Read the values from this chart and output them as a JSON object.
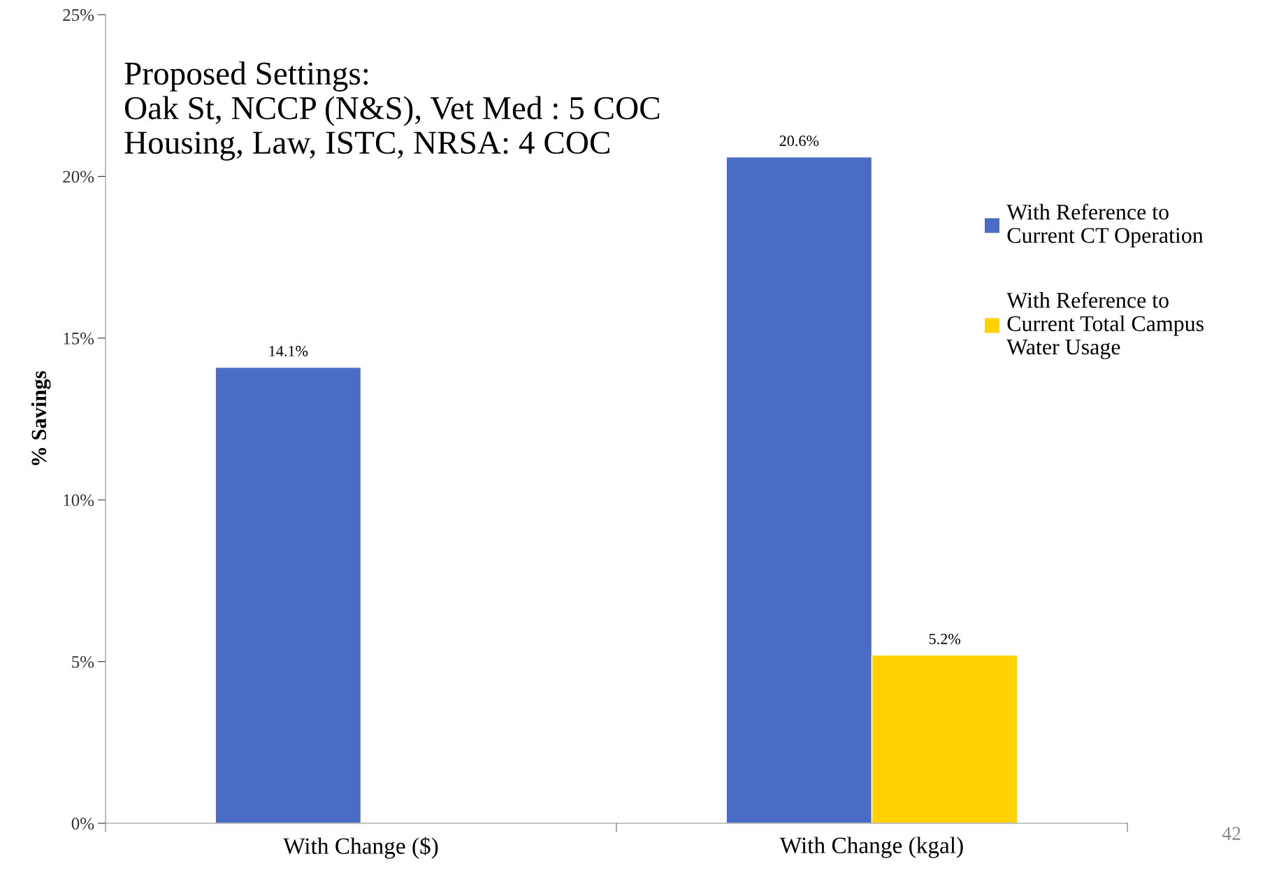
{
  "chart_data": {
    "type": "bar",
    "ylabel": "% Savings",
    "categories": [
      "With Change ($)",
      "With Change (kgal)"
    ],
    "series": [
      {
        "name": "With Reference to\nCurrent CT Operation",
        "color": "#4a6cc4",
        "values": [
          14.1,
          20.6
        ],
        "value_labels": [
          "14.1%",
          "20.6%"
        ]
      },
      {
        "name": "With Reference to\nCurrent Total Campus\nWater Usage",
        "color": "#ffd200",
        "values": [
          null,
          5.2
        ],
        "value_labels": [
          null,
          "5.2%"
        ]
      }
    ],
    "ylim": [
      0,
      25
    ],
    "yticks": [
      {
        "value": 0,
        "label": "0%"
      },
      {
        "value": 5,
        "label": "5%"
      },
      {
        "value": 10,
        "label": "10%"
      },
      {
        "value": 15,
        "label": "15%"
      },
      {
        "value": 20,
        "label": "20%"
      },
      {
        "value": 25,
        "label": "25%"
      }
    ],
    "grid": false,
    "legend": "right",
    "annotations": [
      "Proposed Settings:\nOak St, NCCP (N&S), Vet Med : 5 COC\nHousing, Law, ISTC, NRSA: 4 COC",
      "42"
    ]
  }
}
